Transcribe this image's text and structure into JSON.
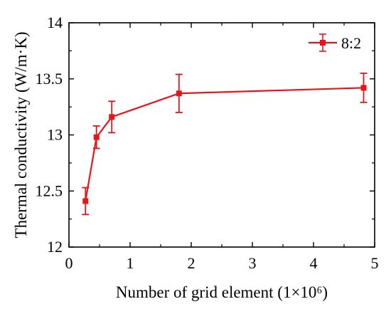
{
  "chart_data": {
    "type": "line",
    "xlabel": "Number of grid element (1×10⁶)",
    "ylabel": "Thermal conductivity (W/m·K)",
    "xlim": [
      0,
      5
    ],
    "ylim": [
      12,
      14
    ],
    "x_ticks": [
      "0",
      "1",
      "2",
      "3",
      "4",
      "5"
    ],
    "y_ticks": [
      "12",
      "12.5",
      "13",
      "13.5",
      "14"
    ],
    "grid": false,
    "legend_position": "top-right",
    "series": [
      {
        "name": "8:2",
        "color": "#e8141c",
        "marker": "square",
        "x": [
          0.27,
          0.45,
          0.7,
          1.8,
          4.82
        ],
        "y": [
          12.41,
          12.98,
          13.16,
          13.37,
          13.42
        ],
        "err": [
          0.12,
          0.1,
          0.14,
          0.17,
          0.13
        ]
      }
    ]
  }
}
